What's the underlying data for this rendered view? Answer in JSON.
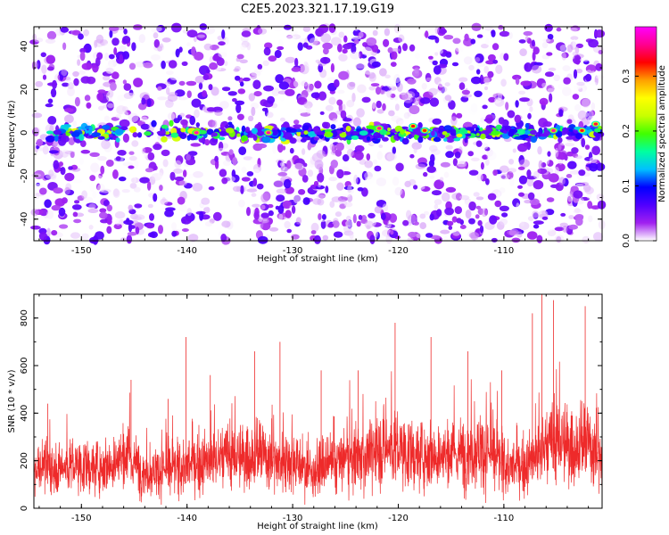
{
  "title": "C2E5.2023.321.17.19.G19",
  "chart_data": [
    {
      "type": "heatmap",
      "xlabel": "Height of straight line (km)",
      "ylabel": "Frequency (Hz)",
      "xlim": [
        -154.5,
        -100.7
      ],
      "ylim": [
        -50,
        49
      ],
      "xticks": [
        -150,
        -140,
        -130,
        -120,
        -110
      ],
      "xtick_labels": [
        "-150",
        "-140",
        "-130",
        "-120",
        "-110"
      ],
      "yticks": [
        -40,
        -20,
        0,
        20,
        40
      ],
      "ytick_labels": [
        "-40",
        "-20",
        "0",
        "20",
        "40"
      ],
      "grid": false,
      "signal_band_hz": [
        -6,
        6
      ],
      "hotspots": [
        {
          "x": -139.1,
          "y": 0,
          "v": 0.38
        },
        {
          "x": -132.3,
          "y": 0,
          "v": 0.37
        },
        {
          "x": -121.8,
          "y": 2,
          "v": 0.37
        },
        {
          "x": -118.6,
          "y": 3,
          "v": 0.33
        },
        {
          "x": -117.5,
          "y": 1,
          "v": 0.32
        },
        {
          "x": -105.3,
          "y": 1,
          "v": 0.37
        },
        {
          "x": -102.6,
          "y": 1,
          "v": 0.33
        },
        {
          "x": -101.3,
          "y": 4,
          "v": 0.34
        }
      ],
      "colorbar": {
        "label": "Normalized spectral amplitude",
        "range": [
          0,
          0.39
        ],
        "ticks": [
          0.0,
          0.1,
          0.2,
          0.3
        ],
        "tick_labels": [
          "0.0",
          "0.1",
          "0.2",
          "0.3"
        ],
        "colors": [
          "#ffffff",
          "#a020f0",
          "#5000ff",
          "#0000ff",
          "#00c0ff",
          "#00ffa0",
          "#40ff00",
          "#c8ff00",
          "#ffff00",
          "#ffa000",
          "#ff0000",
          "#ff0090",
          "#ff00ff"
        ]
      }
    },
    {
      "type": "line",
      "xlabel": "Height of straight line (km)",
      "ylabel": "SNR (10 * v/v)",
      "xlim": [
        -154.5,
        -100.7
      ],
      "ylim": [
        0,
        900
      ],
      "xticks": [
        -150,
        -140,
        -130,
        -120,
        -110
      ],
      "xtick_labels": [
        "-150",
        "-140",
        "-130",
        "-120",
        "-110"
      ],
      "yticks": [
        0,
        200,
        400,
        600,
        800
      ],
      "ytick_labels": [
        "0",
        "200",
        "400",
        "600",
        "800"
      ],
      "grid": false,
      "series": [
        {
          "color": "#ee2a2a",
          "x": [
            -154.5,
            -153,
            -151,
            -149,
            -147,
            -145.5,
            -144,
            -142,
            -140.5,
            -139,
            -137.5,
            -136,
            -134.5,
            -133,
            -131.5,
            -130,
            -128.5,
            -127,
            -125.5,
            -124,
            -122.5,
            -121,
            -120,
            -118.5,
            -117,
            -115.5,
            -114,
            -112.5,
            -111,
            -109.5,
            -108,
            -106.5,
            -105,
            -103.5,
            -102,
            -100.7
          ],
          "values": [
            180,
            170,
            175,
            170,
            190,
            210,
            150,
            160,
            170,
            190,
            200,
            220,
            210,
            230,
            200,
            210,
            150,
            170,
            200,
            210,
            230,
            260,
            240,
            220,
            230,
            210,
            230,
            250,
            220,
            170,
            180,
            230,
            290,
            250,
            280,
            200
          ],
          "peaks": [
            {
              "x": -153.2,
              "y": 440
            },
            {
              "x": -145.3,
              "y": 540
            },
            {
              "x": -141.8,
              "y": 460
            },
            {
              "x": -140.1,
              "y": 720
            },
            {
              "x": -137.8,
              "y": 560
            },
            {
              "x": -133.6,
              "y": 660
            },
            {
              "x": -131.2,
              "y": 700
            },
            {
              "x": -127.3,
              "y": 580
            },
            {
              "x": -123.8,
              "y": 580
            },
            {
              "x": -120.3,
              "y": 780
            },
            {
              "x": -116.9,
              "y": 720
            },
            {
              "x": -113.4,
              "y": 660
            },
            {
              "x": -110.2,
              "y": 580
            },
            {
              "x": -107.3,
              "y": 820
            },
            {
              "x": -106.4,
              "y": 900
            },
            {
              "x": -105.3,
              "y": 875
            },
            {
              "x": -102.3,
              "y": 850
            }
          ]
        }
      ]
    }
  ]
}
